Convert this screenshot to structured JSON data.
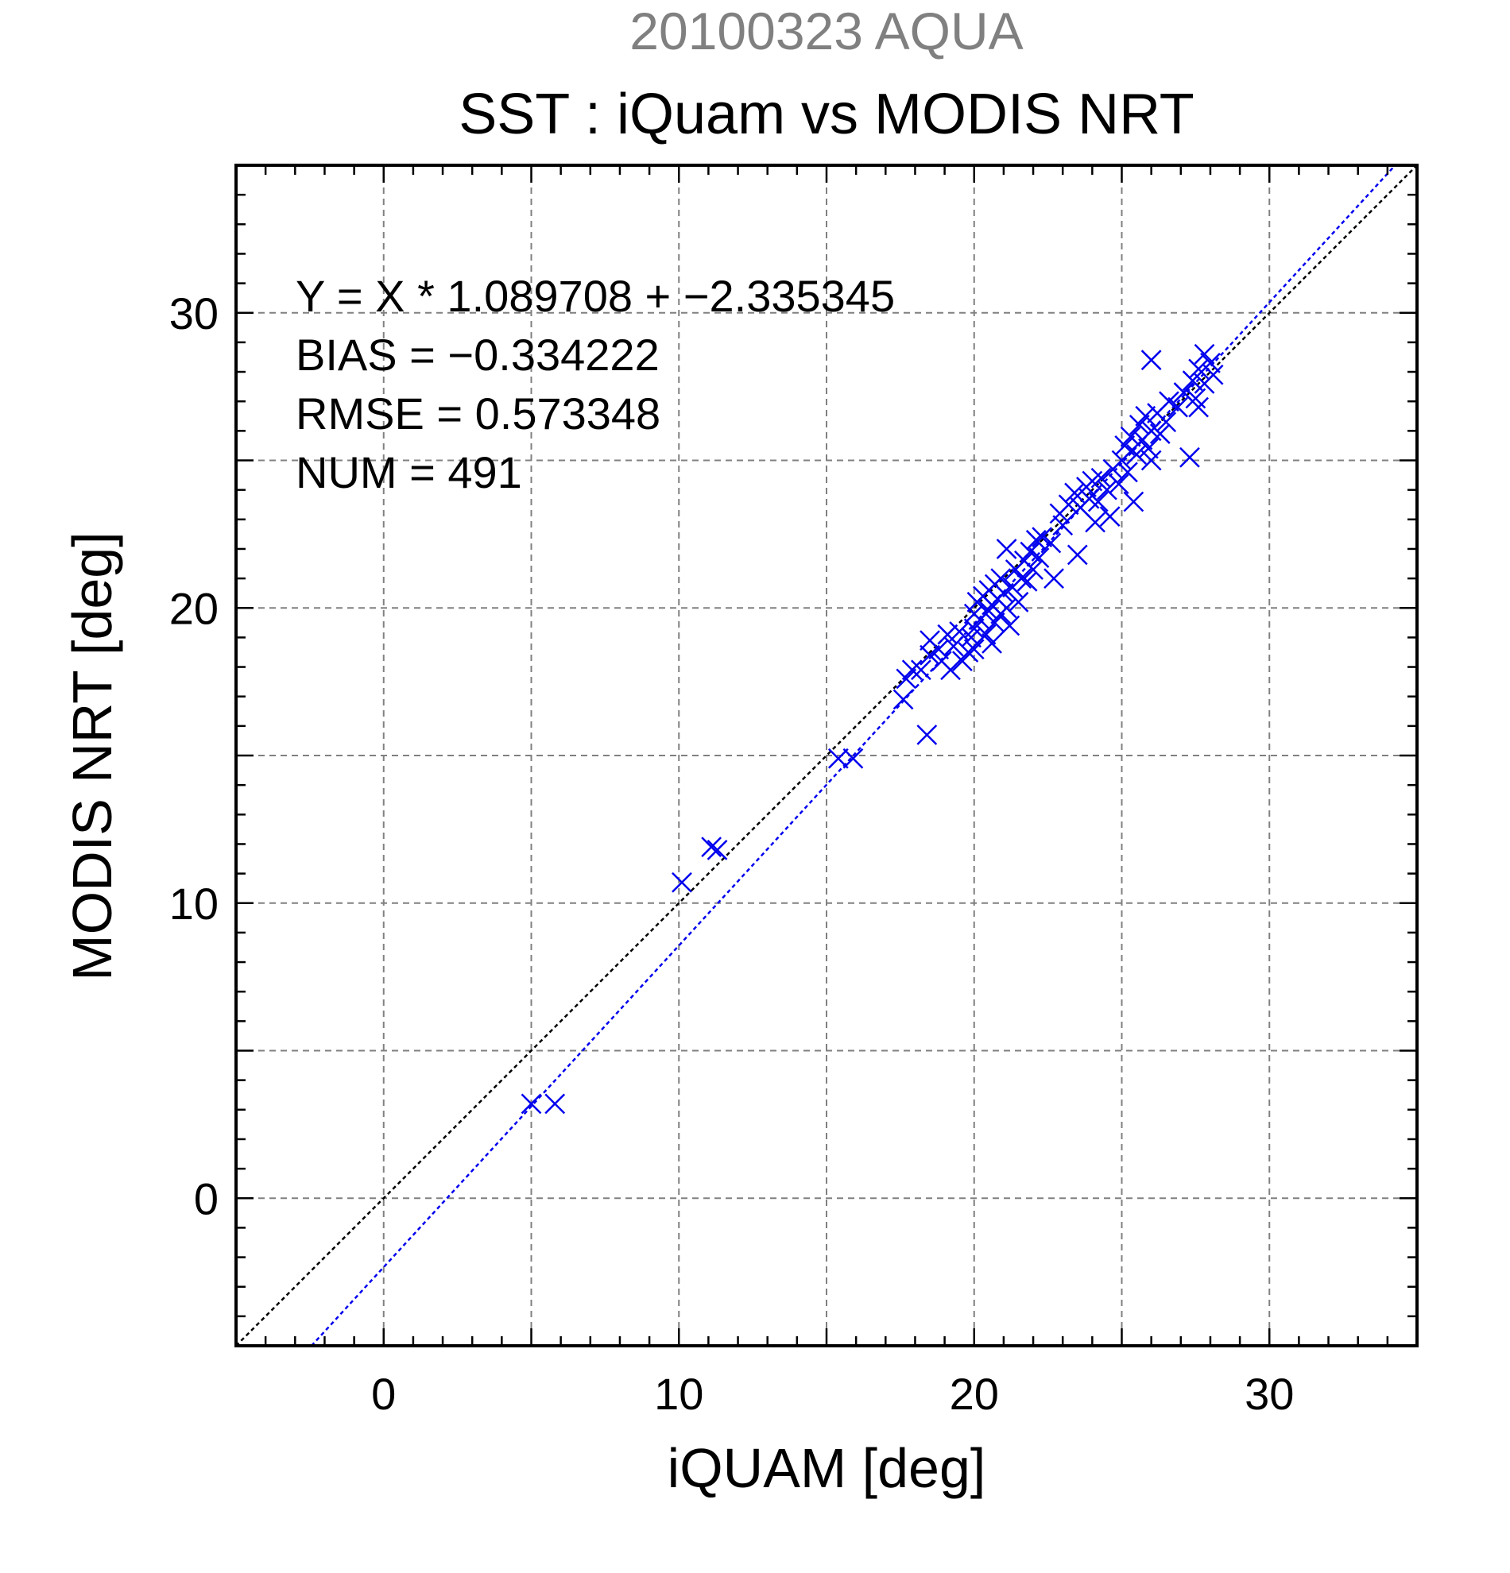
{
  "chart_data": {
    "type": "scatter",
    "title": "SST : iQuam vs MODIS NRT",
    "subtitle": "20100323 AQUA",
    "xlabel": "iQUAM [deg]",
    "ylabel": "MODIS NRT [deg]",
    "xlim": [
      -5,
      35
    ],
    "ylim": [
      -5,
      35
    ],
    "xticks": [
      0,
      10,
      20,
      30
    ],
    "yticks": [
      0,
      10,
      20,
      30
    ],
    "grid": true,
    "colors": {
      "subtitle": "#808080",
      "points": "#0000ee",
      "fit": "#0000ee",
      "identity": "#000000",
      "grid": "#808080"
    },
    "stats": {
      "fit_label": "Y = X * 1.089708 + −2.335345",
      "bias_label": "BIAS = −0.334222",
      "rmse_label": "RMSE = 0.573348",
      "num_label": "NUM = 491"
    },
    "fit": {
      "slope": 1.089708,
      "intercept": -2.335345
    },
    "series": [
      {
        "marker": "x",
        "points": [
          [
            5.0,
            3.2
          ],
          [
            5.8,
            3.2
          ],
          [
            10.1,
            10.7
          ],
          [
            11.1,
            11.9
          ],
          [
            11.3,
            11.8
          ],
          [
            15.4,
            14.9
          ],
          [
            15.9,
            14.9
          ],
          [
            18.4,
            15.7
          ],
          [
            17.6,
            16.9
          ],
          [
            17.7,
            17.6
          ],
          [
            17.9,
            17.9
          ],
          [
            18.2,
            17.9
          ],
          [
            18.5,
            18.4
          ],
          [
            18.5,
            18.9
          ],
          [
            18.8,
            18.6
          ],
          [
            18.9,
            18.2
          ],
          [
            19.1,
            19.1
          ],
          [
            19.3,
            18.7
          ],
          [
            19.2,
            17.9
          ],
          [
            19.6,
            18.2
          ],
          [
            19.5,
            19.2
          ],
          [
            19.8,
            18.5
          ],
          [
            19.9,
            19.0
          ],
          [
            20.0,
            18.6
          ],
          [
            20.0,
            19.3
          ],
          [
            20.0,
            19.8
          ],
          [
            20.1,
            20.2
          ],
          [
            20.2,
            19.6
          ],
          [
            20.3,
            20.4
          ],
          [
            20.4,
            19.1
          ],
          [
            20.5,
            19.9
          ],
          [
            20.5,
            20.6
          ],
          [
            20.6,
            20.1
          ],
          [
            20.7,
            19.5
          ],
          [
            20.7,
            20.8
          ],
          [
            20.8,
            20.3
          ],
          [
            20.9,
            19.8
          ],
          [
            20.9,
            21.0
          ],
          [
            21.0,
            20.5
          ],
          [
            21.1,
            22.0
          ],
          [
            21.1,
            20.0
          ],
          [
            21.2,
            19.4
          ],
          [
            21.3,
            20.7
          ],
          [
            21.4,
            21.3
          ],
          [
            21.5,
            20.2
          ],
          [
            21.6,
            21.0
          ],
          [
            21.7,
            21.6
          ],
          [
            21.8,
            20.9
          ],
          [
            21.9,
            21.9
          ],
          [
            22.0,
            21.3
          ],
          [
            22.1,
            22.3
          ],
          [
            22.2,
            21.7
          ],
          [
            22.3,
            22.4
          ],
          [
            22.6,
            22.2
          ],
          [
            22.7,
            21.0
          ],
          [
            22.9,
            23.2
          ],
          [
            23.0,
            22.8
          ],
          [
            23.2,
            23.5
          ],
          [
            23.4,
            23.9
          ],
          [
            23.5,
            21.8
          ],
          [
            23.6,
            23.4
          ],
          [
            23.8,
            24.1
          ],
          [
            23.9,
            23.7
          ],
          [
            24.0,
            24.3
          ],
          [
            24.1,
            22.9
          ],
          [
            24.2,
            23.6
          ],
          [
            24.3,
            24.4
          ],
          [
            24.5,
            24.0
          ],
          [
            24.6,
            23.1
          ],
          [
            24.7,
            24.7
          ],
          [
            24.9,
            24.2
          ],
          [
            25.0,
            25.0
          ],
          [
            25.1,
            25.5
          ],
          [
            25.2,
            24.6
          ],
          [
            25.3,
            25.8
          ],
          [
            25.4,
            23.6
          ],
          [
            25.5,
            25.2
          ],
          [
            25.6,
            26.2
          ],
          [
            25.7,
            25.7
          ],
          [
            25.8,
            26.5
          ],
          [
            25.9,
            25.4
          ],
          [
            26.0,
            25.0
          ],
          [
            26.0,
            26.0
          ],
          [
            26.2,
            26.6
          ],
          [
            26.3,
            25.9
          ],
          [
            26.5,
            26.3
          ],
          [
            26.6,
            27.0
          ],
          [
            26.9,
            26.8
          ],
          [
            27.1,
            27.3
          ],
          [
            27.3,
            25.1
          ],
          [
            27.4,
            27.7
          ],
          [
            27.5,
            27.1
          ],
          [
            27.6,
            28.1
          ],
          [
            27.8,
            27.6
          ],
          [
            28.0,
            28.3
          ],
          [
            28.1,
            27.9
          ],
          [
            26.0,
            28.4
          ],
          [
            27.8,
            28.6
          ],
          [
            27.6,
            26.8
          ],
          [
            20.6,
            18.8
          ]
        ]
      }
    ]
  }
}
